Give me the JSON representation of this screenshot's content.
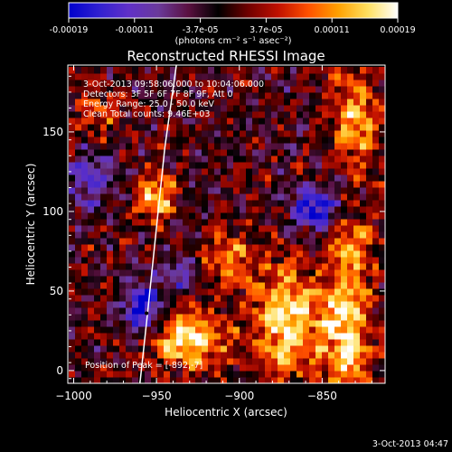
{
  "chart_data": {
    "type": "heatmap",
    "title": "Reconstructed RHESSI Image",
    "xlabel": "Heliocentric X (arcsec)",
    "ylabel": "Heliocentric Y (arcsec)",
    "xlim": [
      -1003,
      -812
    ],
    "ylim": [
      -8,
      192
    ],
    "x_ticks": [
      -1000,
      -950,
      -900,
      -850
    ],
    "y_ticks": [
      0,
      50,
      100,
      150
    ],
    "colorbar": {
      "label": "(photons cm⁻² s⁻¹ asec⁻²)",
      "range": [
        -0.00019,
        0.00019
      ],
      "tick_labels": [
        "-0.00019",
        "-0.00011",
        "-3.7e-05",
        "3.7e-05",
        "0.00011",
        "0.00019"
      ],
      "colors": [
        "#0000cc",
        "#3020d0",
        "#6030c8",
        "#6a3a9a",
        "#5a1040",
        "#000000",
        "#700000",
        "#c01000",
        "#ff5000",
        "#ffa000",
        "#ffe060",
        "#ffffff"
      ]
    },
    "annotations": {
      "time": "3-Oct-2013 09:58:06.000 to 10:04:06.000",
      "detectors": "Detectors: 3F 5F 6F 7F 8F 9F, Att 0",
      "energy": "Energy Range: 25.0 - 50.0 keV",
      "clean": "Clean     Total counts: 9.46E+03",
      "peak": "Position of Peak = [-892,-7]"
    },
    "limb": {
      "points": [
        [
          -960,
          -8
        ],
        [
          -955,
          40
        ],
        [
          -950,
          90
        ],
        [
          -945,
          140
        ],
        [
          -938,
          192
        ]
      ]
    },
    "hot_sources": [
      {
        "x": -930,
        "y": 20,
        "amp": 1.0,
        "sx": 16,
        "sy": 12
      },
      {
        "x": -870,
        "y": 30,
        "amp": 0.95,
        "sx": 14,
        "sy": 25
      },
      {
        "x": -835,
        "y": 25,
        "amp": 0.9,
        "sx": 10,
        "sy": 30
      },
      {
        "x": -950,
        "y": 110,
        "amp": 0.85,
        "sx": 8,
        "sy": 10
      },
      {
        "x": -830,
        "y": 160,
        "amp": 0.7,
        "sx": 10,
        "sy": 25
      },
      {
        "x": -905,
        "y": 70,
        "amp": 0.55,
        "sx": 12,
        "sy": 12
      },
      {
        "x": -985,
        "y": 165,
        "amp": 0.45,
        "sx": 10,
        "sy": 10
      },
      {
        "x": -830,
        "y": 80,
        "amp": 0.6,
        "sx": 8,
        "sy": 12
      }
    ],
    "cold_sources": [
      {
        "x": -958,
        "y": 40,
        "amp": 0.9,
        "sx": 8,
        "sy": 12
      },
      {
        "x": -855,
        "y": 103,
        "amp": 0.85,
        "sx": 10,
        "sy": 10
      },
      {
        "x": -935,
        "y": 62,
        "amp": 0.5,
        "sx": 8,
        "sy": 8
      },
      {
        "x": -990,
        "y": 120,
        "amp": 0.6,
        "sx": 8,
        "sy": 12
      }
    ],
    "footer_date": "3-Oct-2013 04:47"
  }
}
